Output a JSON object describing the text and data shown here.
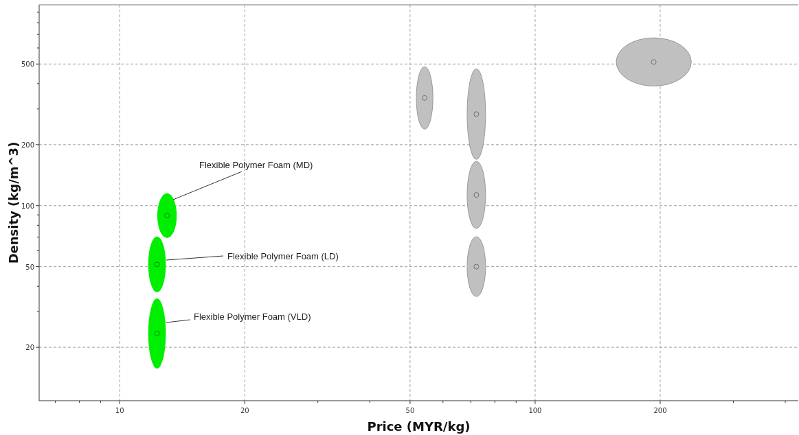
{
  "chart_data": {
    "type": "scatter",
    "xlabel": "Price (MYR/kg)",
    "ylabel": "Density (kg/m^3)",
    "x": [
      12.3,
      12.3,
      13.0,
      54.2,
      72.2,
      72.2,
      72.2,
      193
    ],
    "values": [
      23.4,
      51.3,
      89.3,
      340,
      283,
      113,
      50,
      512
    ],
    "xerrors": [
      [
        11.7,
        12.9
      ],
      [
        11.7,
        12.9
      ],
      [
        12.3,
        13.7
      ],
      [
        51.8,
        56.8
      ],
      [
        68.6,
        76.0
      ],
      [
        68.6,
        76.0
      ],
      [
        68.6,
        76.0
      ],
      [
        157,
        238
      ]
    ],
    "errors": [
      [
        15.7,
        34.8
      ],
      [
        37.3,
        70.3
      ],
      [
        69.3,
        115
      ],
      [
        238,
        484
      ],
      [
        169,
        473
      ],
      [
        77.3,
        166
      ],
      [
        35.6,
        70.3
      ],
      [
        389,
        673
      ]
    ],
    "colors": [
      "#00ee00",
      "#00ee00",
      "#00ee00",
      "#c0c0c0",
      "#c0c0c0",
      "#c0c0c0",
      "#c0c0c0",
      "#c0c0c0"
    ],
    "marker": "circle",
    "log": "xy",
    "xlim": [
      6.4,
      430
    ],
    "ylim": [
      10.9,
      980
    ],
    "xticks": [
      {
        "value": 7,
        "label": null
      },
      {
        "value": 8,
        "label": null
      },
      {
        "value": 9,
        "label": null
      },
      10,
      20,
      {
        "value": 30,
        "label": null
      },
      {
        "value": 40,
        "label": null
      },
      50,
      {
        "value": 60,
        "label": null
      },
      {
        "value": 70,
        "label": null
      },
      {
        "value": 80,
        "label": null
      },
      {
        "value": 90,
        "label": null
      },
      100,
      200,
      {
        "value": 300,
        "label": null
      },
      {
        "value": 400,
        "label": null
      }
    ],
    "yticks": [
      20,
      {
        "value": 30,
        "label": null
      },
      {
        "value": 40,
        "label": null
      },
      50,
      {
        "value": 60,
        "label": null
      },
      {
        "value": 70,
        "label": null
      },
      {
        "value": 80,
        "label": null
      },
      {
        "value": 90,
        "label": null
      },
      100,
      200,
      {
        "value": 300,
        "label": null
      },
      {
        "value": 400,
        "label": null
      },
      500,
      {
        "value": 600,
        "label": null
      },
      {
        "value": 700,
        "label": null
      },
      {
        "value": 800,
        "label": null
      },
      {
        "value": 900,
        "label": null
      }
    ],
    "grid": true,
    "annotations": [
      "Flexible Polymer Foam (MD)",
      "Flexible Polymer Foam (LD)",
      "Flexible Polymer Foam (VLD)"
    ]
  }
}
